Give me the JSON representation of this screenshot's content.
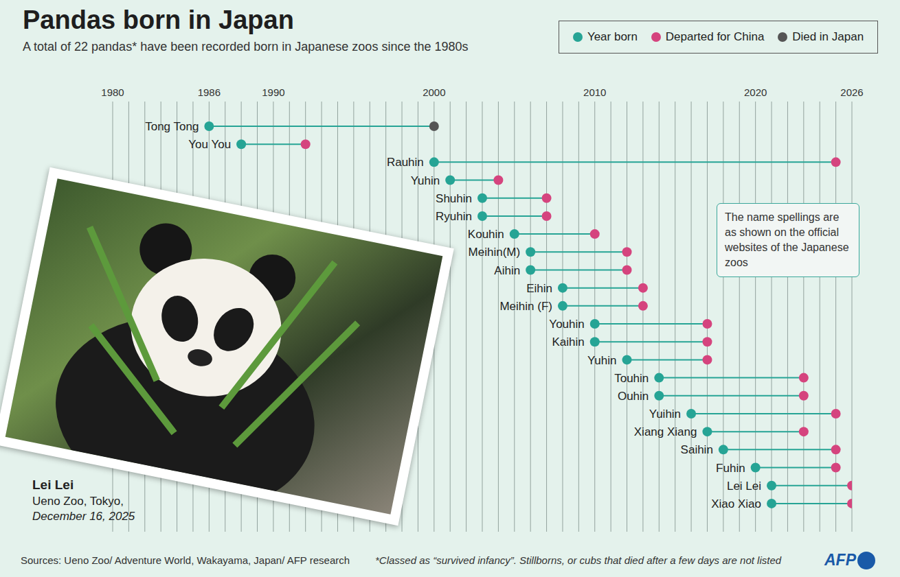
{
  "chart_data": {
    "type": "dumbbell",
    "title": "Pandas born in Japan",
    "subtitle": "A total of 22 pandas* have been recorded born in Japanese zoos since the 1980s",
    "orientation": "horizontal",
    "xlim": [
      1980,
      2026
    ],
    "xticks": [
      1980,
      1986,
      1990,
      2000,
      2010,
      2020,
      2026
    ],
    "grid": true,
    "tick_labels": "x",
    "legend": "top right",
    "series": [
      {
        "name": "Year born",
        "color": "#26a495"
      },
      {
        "name": "Departed for China",
        "color": "#d5447e"
      },
      {
        "name": "Died in Japan",
        "color": "#555555"
      }
    ],
    "pandas": [
      {
        "name": "Tong Tong",
        "born": 1986,
        "end": 2000,
        "outcome": "Died in Japan"
      },
      {
        "name": "You You",
        "born": 1988,
        "end": 1992,
        "outcome": "Departed for China"
      },
      {
        "name": "Rauhin",
        "born": 2000,
        "end": 2025,
        "outcome": "Departed for China"
      },
      {
        "name": "Yuhin",
        "born": 2001,
        "end": 2004,
        "outcome": "Departed for China"
      },
      {
        "name": "Shuhin",
        "born": 2003,
        "end": 2007,
        "outcome": "Departed for China"
      },
      {
        "name": "Ryuhin",
        "born": 2003,
        "end": 2007,
        "outcome": "Departed for China"
      },
      {
        "name": "Kouhin",
        "born": 2005,
        "end": 2010,
        "outcome": "Departed for China"
      },
      {
        "name": "Meihin(M)",
        "born": 2006,
        "end": 2012,
        "outcome": "Departed for China"
      },
      {
        "name": "Aihin",
        "born": 2006,
        "end": 2012,
        "outcome": "Departed for China"
      },
      {
        "name": "Eihin",
        "born": 2008,
        "end": 2013,
        "outcome": "Departed for China"
      },
      {
        "name": "Meihin (F)",
        "born": 2008,
        "end": 2013,
        "outcome": "Departed for China"
      },
      {
        "name": "Youhin",
        "born": 2010,
        "end": 2017,
        "outcome": "Departed for China"
      },
      {
        "name": "Kaihin",
        "born": 2010,
        "end": 2017,
        "outcome": "Departed for China"
      },
      {
        "name": "Yuhin",
        "born": 2012,
        "end": 2017,
        "outcome": "Departed for China"
      },
      {
        "name": "Touhin",
        "born": 2014,
        "end": 2023,
        "outcome": "Departed for China"
      },
      {
        "name": "Ouhin",
        "born": 2014,
        "end": 2023,
        "outcome": "Departed for China"
      },
      {
        "name": "Yuihin",
        "born": 2016,
        "end": 2025,
        "outcome": "Departed for China"
      },
      {
        "name": "Xiang Xiang",
        "born": 2017,
        "end": 2023,
        "outcome": "Departed for China"
      },
      {
        "name": "Saihin",
        "born": 2018,
        "end": 2025,
        "outcome": "Departed for China"
      },
      {
        "name": "Fuhin",
        "born": 2020,
        "end": 2025,
        "outcome": "Departed for China"
      },
      {
        "name": "Lei Lei",
        "born": 2021,
        "end": 2026,
        "outcome": "Departed for China"
      },
      {
        "name": "Xiao Xiao",
        "born": 2021,
        "end": 2026,
        "outcome": "Departed for China"
      }
    ],
    "annotation": "The name spellings are as shown on the official websites of the Japanese zoos",
    "photo_caption": {
      "title": "Lei Lei",
      "location": "Ueno Zoo, Tokyo,",
      "date": "December 16, 2025"
    },
    "source": "Sources: Ueno Zoo/ Adventure World, Wakayama, Japan/ AFP research",
    "footnote": "*Classed as “survived infancy”. Stillborns, or cubs that died after a few days are not listed",
    "credit": "AFP"
  }
}
